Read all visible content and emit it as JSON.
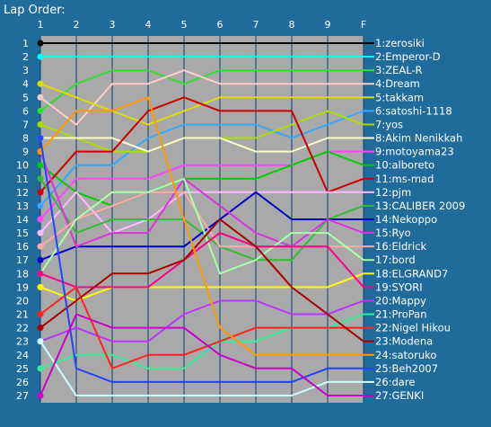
{
  "window": {
    "background": "#1f6c9c",
    "plot_background": "#a9a9a9",
    "grid_color": "#0f3d73",
    "text_color": "#ffffff"
  },
  "chart_data": {
    "type": "line",
    "title": "Lap Order:",
    "x_ticks": [
      "1",
      "2",
      "3",
      "4",
      "5",
      "6",
      "7",
      "8",
      "9",
      "F"
    ],
    "y_ticks": [
      1,
      2,
      3,
      4,
      5,
      6,
      7,
      8,
      9,
      10,
      11,
      12,
      13,
      14,
      15,
      16,
      17,
      18,
      19,
      20,
      21,
      22,
      23,
      24,
      25,
      26,
      27
    ],
    "y_reversed": true,
    "grid": true,
    "legend_position": "right",
    "series": [
      {
        "name": "1:zerosiki",
        "color": "#000000",
        "positions": [
          1,
          1,
          1,
          1,
          1,
          1,
          1,
          1,
          1,
          1
        ]
      },
      {
        "name": "2:Emperor-D",
        "color": "#00ffff",
        "positions": [
          2,
          2,
          2,
          2,
          2,
          2,
          2,
          2,
          2,
          2
        ]
      },
      {
        "name": "3:ZEAL-R",
        "color": "#33dd33",
        "positions": [
          6,
          4,
          3,
          3,
          4,
          3,
          3,
          3,
          3,
          3
        ]
      },
      {
        "name": "4:Dream",
        "color": "#ffcccc",
        "positions": [
          5,
          7,
          4,
          4,
          3,
          4,
          4,
          4,
          4,
          4
        ]
      },
      {
        "name": "5:takkam",
        "color": "#dddd00",
        "positions": [
          4,
          5,
          6,
          7,
          6,
          5,
          5,
          5,
          5,
          5
        ]
      },
      {
        "name": "6:satoshi-1118",
        "color": "#33aaff",
        "positions": [
          13,
          10,
          10,
          8,
          7,
          7,
          7,
          8,
          7,
          6
        ]
      },
      {
        "name": "7:yos",
        "color": "#aadd00",
        "positions": [
          7,
          8,
          9,
          9,
          8,
          8,
          8,
          7,
          6,
          7
        ]
      },
      {
        "name": "8:Akim Nenikkah",
        "color": "#ffffcc",
        "positions": [
          8,
          8,
          8,
          9,
          8,
          8,
          9,
          9,
          8,
          8
        ]
      },
      {
        "name": "9:motoyama23",
        "color": "#ff44ff",
        "positions": [
          14,
          11,
          11,
          11,
          10,
          10,
          10,
          10,
          9,
          9
        ]
      },
      {
        "name": "10:alboreto",
        "color": "#00cc00",
        "positions": [
          10,
          12,
          13,
          12,
          11,
          11,
          11,
          10,
          9,
          10
        ]
      },
      {
        "name": "11:ms-mad",
        "color": "#cc0000",
        "positions": [
          12,
          9,
          9,
          6,
          5,
          6,
          6,
          6,
          12,
          11
        ]
      },
      {
        "name": "12:pjm",
        "color": "#ffbbff",
        "positions": [
          15,
          12,
          15,
          14,
          12,
          12,
          12,
          12,
          12,
          12
        ]
      },
      {
        "name": "13:CALIBER 2009",
        "color": "#33bb33",
        "positions": [
          11,
          15,
          14,
          14,
          14,
          16,
          17,
          17,
          14,
          13
        ]
      },
      {
        "name": "14:Nekoppo",
        "color": "#0000cc",
        "positions": [
          17,
          16,
          16,
          16,
          16,
          14,
          12,
          14,
          14,
          14
        ]
      },
      {
        "name": "15:Ryo",
        "color": "#dd33dd",
        "positions": [
          9,
          16,
          15,
          15,
          11,
          13,
          15,
          16,
          14,
          15
        ]
      },
      {
        "name": "16:Eldrick",
        "color": "#ffaaaa",
        "positions": [
          16,
          14,
          13,
          12,
          12,
          16,
          16,
          16,
          16,
          16
        ]
      },
      {
        "name": "17:bord",
        "color": "#aaffaa",
        "positions": [
          18,
          14,
          12,
          12,
          11,
          18,
          17,
          15,
          15,
          17
        ]
      },
      {
        "name": "18:ELGRAND7",
        "color": "#ffff00",
        "positions": [
          19,
          20,
          19,
          19,
          19,
          19,
          19,
          19,
          19,
          18
        ]
      },
      {
        "name": "19:SYORI",
        "color": "#ff0088",
        "positions": [
          18,
          19,
          19,
          19,
          17,
          15,
          16,
          16,
          16,
          19
        ]
      },
      {
        "name": "20:Mappy",
        "color": "#bb33ff",
        "positions": [
          23,
          22,
          23,
          23,
          21,
          20,
          20,
          21,
          21,
          20
        ]
      },
      {
        "name": "21:ProPan",
        "color": "#33ee99",
        "positions": [
          25,
          24,
          24,
          25,
          25,
          23,
          23,
          22,
          22,
          21
        ]
      },
      {
        "name": "22:Nigel Hikou",
        "color": "#ff2222",
        "positions": [
          21,
          19,
          25,
          24,
          24,
          23,
          22,
          22,
          22,
          22
        ]
      },
      {
        "name": "23:Modena",
        "color": "#aa0000",
        "positions": [
          22,
          20,
          18,
          18,
          17,
          14,
          16,
          19,
          21,
          23
        ]
      },
      {
        "name": "24:satoruko",
        "color": "#ff9900",
        "positions": [
          9,
          6,
          6,
          5,
          14,
          22,
          24,
          24,
          24,
          24
        ]
      },
      {
        "name": "25:Beh2007",
        "color": "#2244ff",
        "positions": [
          8,
          25,
          26,
          26,
          26,
          26,
          26,
          26,
          25,
          25
        ]
      },
      {
        "name": "26:dare",
        "color": "#ccffff",
        "positions": [
          23,
          27,
          27,
          27,
          27,
          27,
          27,
          27,
          26,
          26
        ]
      },
      {
        "name": "27:GENKI",
        "color": "#cc00cc",
        "positions": [
          27,
          21,
          22,
          22,
          22,
          24,
          25,
          25,
          27,
          27
        ]
      }
    ]
  }
}
